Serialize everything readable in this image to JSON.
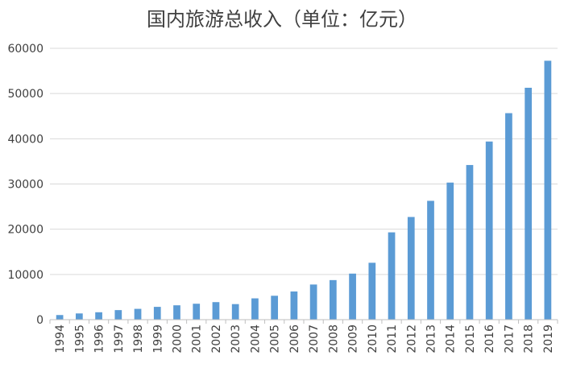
{
  "chart_data": {
    "type": "bar",
    "title": "国内旅游总收入（单位：亿元）",
    "xlabel": "",
    "ylabel": "",
    "ylim": [
      0,
      60000
    ],
    "yticks": [
      0,
      10000,
      20000,
      30000,
      40000,
      50000,
      60000
    ],
    "grid": true,
    "bar_color": "#5B9BD5",
    "categories": [
      "1994",
      "1995",
      "1996",
      "1997",
      "1998",
      "1999",
      "2000",
      "2001",
      "2002",
      "2003",
      "2004",
      "2005",
      "2006",
      "2007",
      "2008",
      "2009",
      "2010",
      "2011",
      "2012",
      "2013",
      "2014",
      "2015",
      "2016",
      "2017",
      "2018",
      "2019"
    ],
    "values": [
      1024,
      1376,
      1638,
      2113,
      2391,
      2832,
      3176,
      3522,
      3878,
      3442,
      4711,
      5286,
      6230,
      7771,
      8749,
      10184,
      12580,
      19305,
      22706,
      26276,
      30312,
      34195,
      39390,
      45661,
      51278,
      57251
    ]
  }
}
